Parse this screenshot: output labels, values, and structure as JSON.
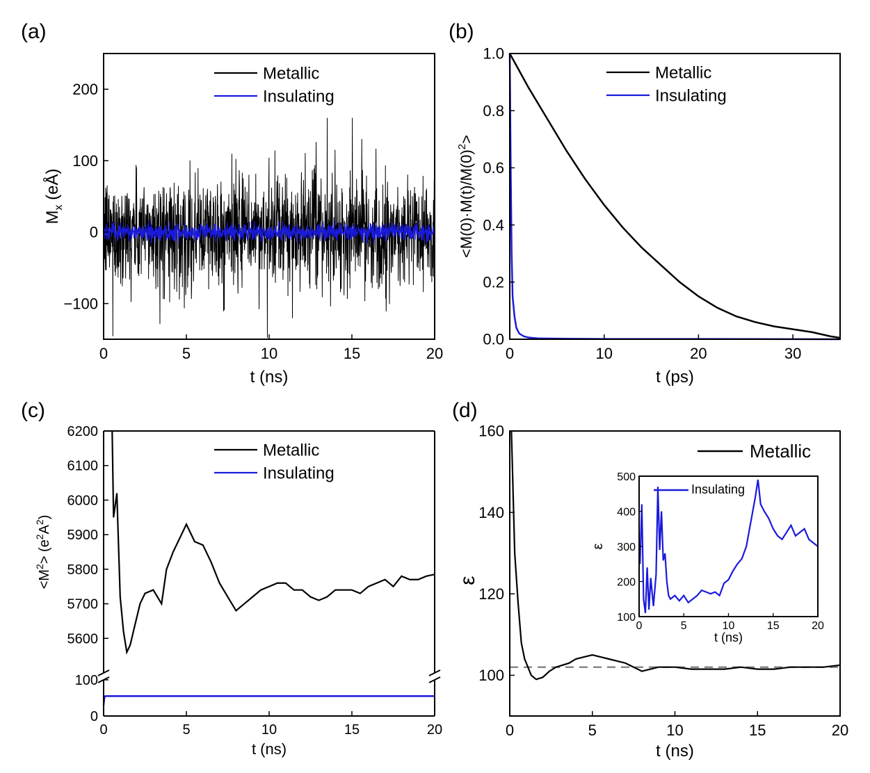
{
  "colors": {
    "metallic": "#000000",
    "insulating": "#1a1adb",
    "reference": "#888888",
    "axis": "#000000"
  },
  "chart_data": [
    {
      "panel": "(a)",
      "type": "line",
      "xlabel": "t (ns)",
      "ylabel": "M",
      "ylabel_sub": "x",
      "ylabel_unit": " (eÅ)",
      "xlim": [
        0,
        20
      ],
      "ylim": [
        -150,
        250
      ],
      "xticks": [
        0,
        5,
        10,
        15,
        20
      ],
      "yticks": [
        -100,
        0,
        100,
        200
      ],
      "xtick_labels": [
        "0",
        "5",
        "10",
        "15",
        "20"
      ],
      "ytick_labels": [
        "−100",
        "0",
        "100",
        "200"
      ],
      "legend": "top-center",
      "noise": true,
      "series": [
        {
          "name": "Metallic",
          "key": "metallic",
          "amplitude_std": 38,
          "max_abs": 160,
          "min": -148
        },
        {
          "name": "Insulating",
          "key": "insulating",
          "amplitude_std": 6,
          "max_abs": 16
        }
      ]
    },
    {
      "panel": "(b)",
      "type": "line",
      "xlabel": "t (ps)",
      "ylabel": "<M(0)·M(t)/M(0)",
      "ylabel_sup": "2",
      "ylabel_end": ">",
      "xlim": [
        0,
        35
      ],
      "ylim": [
        0,
        1.0
      ],
      "xticks": [
        0,
        10,
        20,
        30
      ],
      "yticks": [
        0.0,
        0.2,
        0.4,
        0.6,
        0.8,
        1.0
      ],
      "xtick_labels": [
        "0",
        "10",
        "20",
        "30"
      ],
      "ytick_labels": [
        "0.0",
        "0.2",
        "0.4",
        "0.6",
        "0.8",
        "1.0"
      ],
      "legend": "top-center",
      "series": [
        {
          "name": "Metallic",
          "key": "metallic",
          "x": [
            0,
            1,
            2,
            4,
            6,
            8,
            10,
            12,
            14,
            16,
            18,
            20,
            22,
            24,
            26,
            28,
            30,
            32,
            34,
            35
          ],
          "y": [
            1.0,
            0.94,
            0.88,
            0.77,
            0.66,
            0.56,
            0.47,
            0.39,
            0.32,
            0.26,
            0.2,
            0.15,
            0.11,
            0.08,
            0.06,
            0.045,
            0.035,
            0.025,
            0.01,
            0.005
          ]
        },
        {
          "name": "Insulating",
          "key": "insulating",
          "x": [
            0,
            0.1,
            0.2,
            0.3,
            0.5,
            0.7,
            1.0,
            1.5,
            2,
            3,
            5,
            10,
            20,
            35
          ],
          "y": [
            1.0,
            0.6,
            0.3,
            0.15,
            0.08,
            0.04,
            0.02,
            0.01,
            0.006,
            0.003,
            0.002,
            0.001,
            0.001,
            0.0
          ]
        }
      ]
    },
    {
      "panel": "(c)",
      "type": "line",
      "xlabel": "t (ns)",
      "ylabel": "<M",
      "ylabel_sup": "2",
      "ylabel_mid": "> (e",
      "ylabel_sup2": "2",
      "ylabel_unit": "A",
      "ylabel_sup3": "2",
      "ylabel_end": ")",
      "xlim": [
        0,
        20
      ],
      "broken_axis": true,
      "ylim_upper": [
        5500,
        6200
      ],
      "ylim_lower": [
        0,
        100
      ],
      "yticks_upper": [
        5600,
        5700,
        5800,
        5900,
        6000,
        6100,
        6200
      ],
      "yticks_lower": [
        0,
        100
      ],
      "xticks": [
        0,
        5,
        10,
        15,
        20
      ],
      "xtick_labels": [
        "0",
        "5",
        "10",
        "15",
        "20"
      ],
      "ytick_labels_upper": [
        "5600",
        "5700",
        "5800",
        "5900",
        "6000",
        "6100",
        "6200"
      ],
      "ytick_labels_lower": [
        "0",
        "100"
      ],
      "legend": "top-center",
      "series": [
        {
          "name": "Metallic",
          "key": "metallic",
          "x": [
            0.5,
            0.6,
            0.8,
            1.0,
            1.2,
            1.4,
            1.6,
            1.8,
            2.0,
            2.2,
            2.5,
            3.0,
            3.5,
            3.8,
            4.2,
            4.6,
            5.0,
            5.5,
            6.0,
            6.5,
            7.0,
            7.5,
            8.0,
            8.5,
            9.0,
            9.5,
            10.0,
            10.5,
            11.0,
            11.5,
            12.0,
            12.5,
            13.0,
            13.5,
            14.0,
            14.5,
            15.0,
            15.5,
            16.0,
            16.5,
            17.0,
            17.5,
            18.0,
            18.5,
            19.0,
            19.5,
            20.0
          ],
          "y": [
            6250,
            5950,
            6020,
            5720,
            5620,
            5560,
            5580,
            5620,
            5660,
            5700,
            5730,
            5740,
            5700,
            5800,
            5850,
            5890,
            5930,
            5880,
            5870,
            5820,
            5760,
            5720,
            5680,
            5700,
            5720,
            5740,
            5750,
            5760,
            5760,
            5740,
            5740,
            5720,
            5710,
            5720,
            5740,
            5740,
            5740,
            5730,
            5750,
            5760,
            5770,
            5750,
            5780,
            5770,
            5770,
            5780,
            5785
          ]
        },
        {
          "name": "Insulating",
          "key": "insulating",
          "x": [
            0,
            0.05,
            0.1,
            0.3,
            1,
            5,
            10,
            15,
            20
          ],
          "y": [
            30,
            52,
            55,
            55,
            55,
            55,
            55,
            55,
            55
          ]
        }
      ]
    },
    {
      "panel": "(d)",
      "type": "line",
      "xlabel": "t (ns)",
      "ylabel": "ε",
      "xlim": [
        0,
        20
      ],
      "ylim": [
        90,
        160
      ],
      "xticks": [
        0,
        5,
        10,
        15,
        20
      ],
      "yticks": [
        100,
        120,
        140,
        160
      ],
      "xtick_labels": [
        "0",
        "5",
        "10",
        "15",
        "20"
      ],
      "ytick_labels": [
        "100",
        "120",
        "140",
        "160"
      ],
      "legend": "top-right",
      "reference_line": 102,
      "series": [
        {
          "name": "Metallic",
          "key": "metallic",
          "x": [
            0.1,
            0.3,
            0.5,
            0.7,
            0.9,
            1.1,
            1.3,
            1.6,
            2.0,
            2.4,
            2.8,
            3.2,
            3.6,
            4.0,
            4.5,
            5.0,
            5.5,
            6.0,
            6.5,
            7.0,
            7.5,
            8.0,
            8.5,
            9.0,
            10.0,
            11.0,
            12.0,
            13.0,
            14.0,
            15.0,
            16.0,
            17.0,
            18.0,
            19.0,
            20.0
          ],
          "y": [
            160,
            130,
            118,
            108,
            104,
            102,
            100,
            99,
            99.5,
            101,
            102,
            102.5,
            103,
            104,
            104.5,
            105,
            104.5,
            104,
            103.5,
            103,
            102,
            101,
            101.5,
            102,
            102,
            101.5,
            101.5,
            101.5,
            102,
            101.5,
            101.5,
            102,
            102,
            102,
            102.5
          ]
        }
      ],
      "inset": {
        "xlabel": "t (ns)",
        "ylabel": "ε",
        "xlim": [
          0,
          20
        ],
        "ylim": [
          100,
          500
        ],
        "xticks": [
          0,
          5,
          10,
          15,
          20
        ],
        "yticks": [
          100,
          200,
          300,
          400,
          500
        ],
        "xtick_labels": [
          "0",
          "5",
          "10",
          "15",
          "20"
        ],
        "ytick_labels": [
          "100",
          "200",
          "300",
          "400",
          "500"
        ],
        "series": [
          {
            "name": "Insulating",
            "key": "insulating",
            "x": [
              0.1,
              0.3,
              0.5,
              0.7,
              0.9,
              1.1,
              1.3,
              1.6,
              1.9,
              2.1,
              2.3,
              2.5,
              2.7,
              2.9,
              3.1,
              3.3,
              3.5,
              4.0,
              4.5,
              5.0,
              5.5,
              6.0,
              6.5,
              7.0,
              7.5,
              8.0,
              8.5,
              9.0,
              9.5,
              10.0,
              10.5,
              11.0,
              11.5,
              12.0,
              12.5,
              13.0,
              13.3,
              13.6,
              14.0,
              14.5,
              15.0,
              15.5,
              16.0,
              16.5,
              17.0,
              17.5,
              18.0,
              18.5,
              19.0,
              19.5,
              20.0
            ],
            "y": [
              250,
              420,
              150,
              110,
              240,
              120,
              210,
              130,
              220,
              470,
              290,
              400,
              260,
              280,
              200,
              160,
              150,
              160,
              145,
              160,
              140,
              150,
              160,
              175,
              170,
              165,
              170,
              160,
              195,
              205,
              230,
              250,
              265,
              300,
              370,
              440,
              490,
              420,
              400,
              380,
              350,
              330,
              320,
              340,
              360,
              330,
              340,
              350,
              320,
              310,
              300
            ]
          }
        ]
      }
    }
  ]
}
